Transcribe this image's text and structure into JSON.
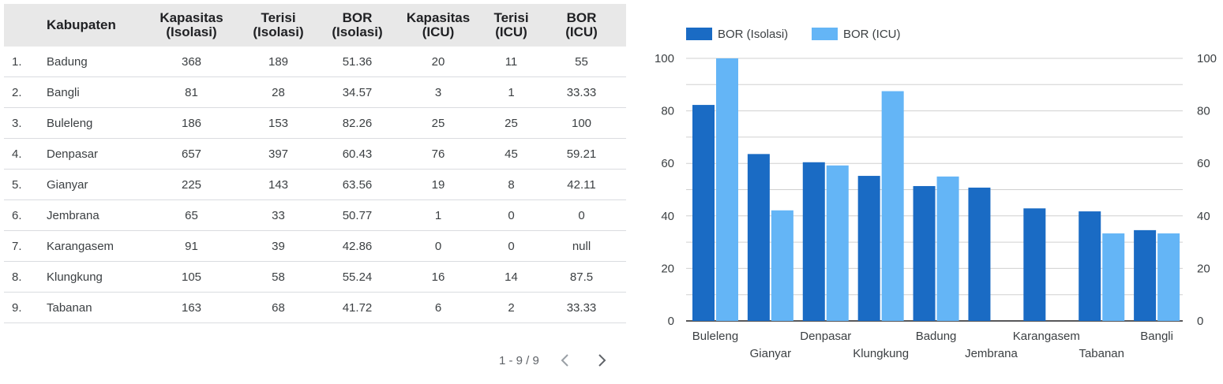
{
  "table": {
    "headers": [
      {
        "lines": [
          "",
          ""
        ]
      },
      {
        "lines": [
          "Kabupaten",
          ""
        ]
      },
      {
        "lines": [
          "Kapasitas",
          "(Isolasi)"
        ]
      },
      {
        "lines": [
          "Terisi",
          "(Isolasi)"
        ]
      },
      {
        "lines": [
          "BOR",
          "(Isolasi)"
        ]
      },
      {
        "lines": [
          "Kapasitas",
          "(ICU)"
        ]
      },
      {
        "lines": [
          "Terisi",
          "(ICU)"
        ]
      },
      {
        "lines": [
          "BOR",
          "(ICU)"
        ]
      }
    ],
    "rows": [
      [
        "1.",
        "Badung",
        "368",
        "189",
        "51.36",
        "20",
        "11",
        "55"
      ],
      [
        "2.",
        "Bangli",
        "81",
        "28",
        "34.57",
        "3",
        "1",
        "33.33"
      ],
      [
        "3.",
        "Buleleng",
        "186",
        "153",
        "82.26",
        "25",
        "25",
        "100"
      ],
      [
        "4.",
        "Denpasar",
        "657",
        "397",
        "60.43",
        "76",
        "45",
        "59.21"
      ],
      [
        "5.",
        "Gianyar",
        "225",
        "143",
        "63.56",
        "19",
        "8",
        "42.11"
      ],
      [
        "6.",
        "Jembrana",
        "65",
        "33",
        "50.77",
        "1",
        "0",
        "0"
      ],
      [
        "7.",
        "Karangasem",
        "91",
        "39",
        "42.86",
        "0",
        "0",
        "null"
      ],
      [
        "8.",
        "Klungkung",
        "105",
        "58",
        "55.24",
        "16",
        "14",
        "87.5"
      ],
      [
        "9.",
        "Tabanan",
        "163",
        "68",
        "41.72",
        "6",
        "2",
        "33.33"
      ]
    ]
  },
  "pager": {
    "text": "1 - 9 / 9",
    "prev_icon": "chevron-left-icon",
    "next_icon": "chevron-right-icon"
  },
  "chart_data": {
    "type": "bar",
    "categories": [
      "Buleleng",
      "Gianyar",
      "Denpasar",
      "Klungkung",
      "Badung",
      "Jembrana",
      "Karangasem",
      "Tabanan",
      "Bangli"
    ],
    "series": [
      {
        "name": "BOR (Isolasi)",
        "values": [
          82.26,
          63.56,
          60.43,
          55.24,
          51.36,
          50.77,
          42.86,
          41.72,
          34.57
        ],
        "color": "#1a6bc4"
      },
      {
        "name": "BOR (ICU)",
        "values": [
          100,
          42.11,
          59.21,
          87.5,
          55,
          0,
          null,
          33.33,
          33.33
        ],
        "color": "#64b5f6"
      }
    ],
    "ylim": [
      0,
      100
    ],
    "yticks": [
      0,
      20,
      40,
      60,
      80,
      100
    ],
    "y_tick_labels": [
      "0",
      "20",
      "40",
      "60",
      "80",
      "100"
    ],
    "right_axis": true,
    "grid": true,
    "legend_position": "top-left"
  }
}
